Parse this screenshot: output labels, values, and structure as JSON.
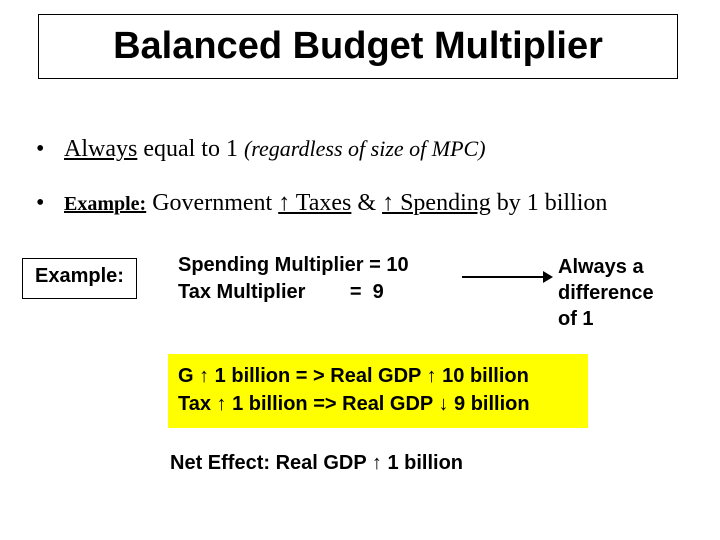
{
  "title": "Balanced Budget Multiplier",
  "bullets": {
    "b1": {
      "dot": "•",
      "always": "Always",
      "rest": " equal to 1 ",
      "paren": "(regardless of size of MPC)"
    },
    "b2": {
      "dot": "•",
      "example_label": "Example:",
      "gov": "  Government ",
      "taxes": "↑ Taxes",
      "amp": "  & ",
      "spending": "↑ Spending",
      "by": " by 1 billion"
    }
  },
  "example_box": "Example:",
  "multipliers": "Spending Multiplier = 10\nTax Multiplier        =  9",
  "difference": {
    "l1": "Always a difference",
    "l2": "of 1"
  },
  "yellow": {
    "l1": "G ↑ 1 billion = > Real GDP ↑ 10 billion",
    "l2": "Tax ↑ 1 billion => Real GDP ↓ 9 billion"
  },
  "net_effect": "Net Effect:  Real GDP ↑ 1 billion",
  "colors": {
    "highlight": "#ffff00",
    "text": "#000000",
    "background": "#ffffff"
  }
}
